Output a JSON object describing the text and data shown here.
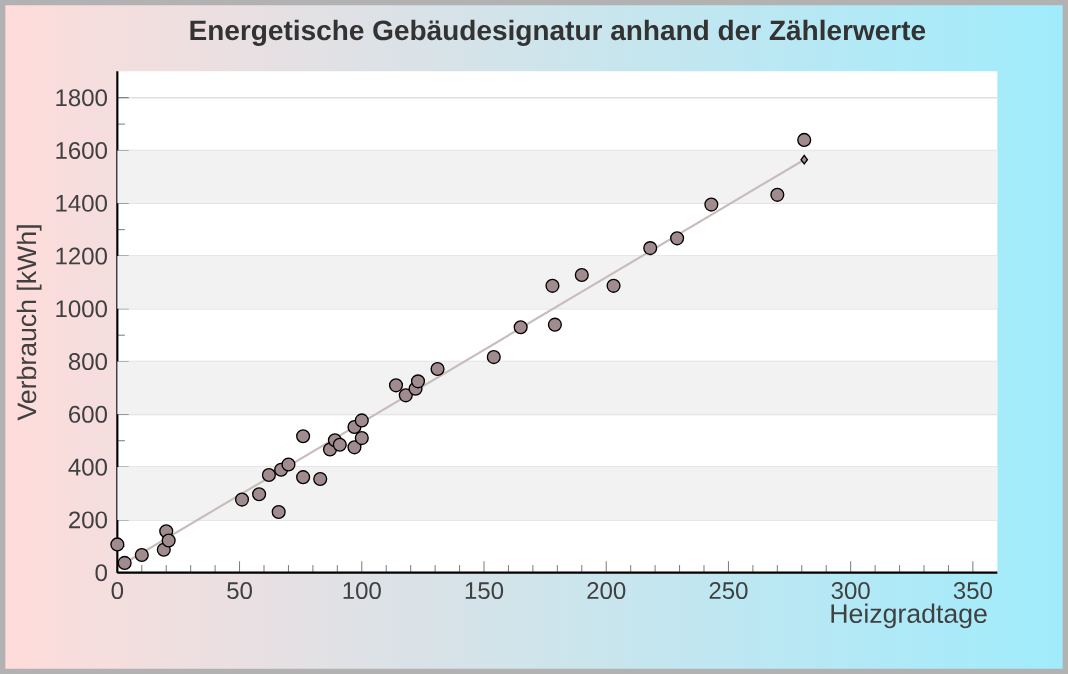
{
  "chart_data": {
    "type": "scatter",
    "title": "Energetische Gebäudesignatur anhand der Zählerwerte",
    "xlabel": "Heizgradtage",
    "ylabel": "Verbrauch [kWh]",
    "xlim": [
      0,
      360
    ],
    "ylim": [
      0,
      1900
    ],
    "xticks": [
      0,
      50,
      100,
      150,
      200,
      250,
      300,
      350
    ],
    "yticks": [
      0,
      200,
      400,
      600,
      800,
      1000,
      1200,
      1400,
      1600,
      1800
    ],
    "grid": "y",
    "marker": "circle",
    "series": [
      {
        "color": "#a08c8e",
        "x": [
          0,
          3,
          10,
          19,
          20,
          21,
          51,
          58,
          66,
          62,
          67,
          70,
          76,
          76,
          83,
          87,
          89,
          91,
          97,
          97,
          100,
          100,
          114,
          118,
          122,
          123,
          131,
          154,
          165,
          179,
          178,
          190,
          203,
          218,
          229,
          243,
          270,
          281
        ],
        "values": [
          107,
          37,
          67,
          87,
          157,
          122,
          277,
          297,
          230,
          370,
          390,
          410,
          517,
          362,
          355,
          467,
          502,
          485,
          552,
          475,
          577,
          510,
          710,
          672,
          697,
          725,
          772,
          817,
          930,
          940,
          1087,
          1128,
          1087,
          1230,
          1267,
          1395,
          1432,
          1640
        ]
      },
      {
        "type": "line",
        "color": "#c8bcbc",
        "marker": "none",
        "x": [
          5,
          281
        ],
        "values": [
          47,
          1565
        ]
      },
      {
        "type": "scatter",
        "color": "#a08c8e",
        "marker": "diamond",
        "x": [
          281
        ],
        "values": [
          1565
        ]
      }
    ]
  }
}
